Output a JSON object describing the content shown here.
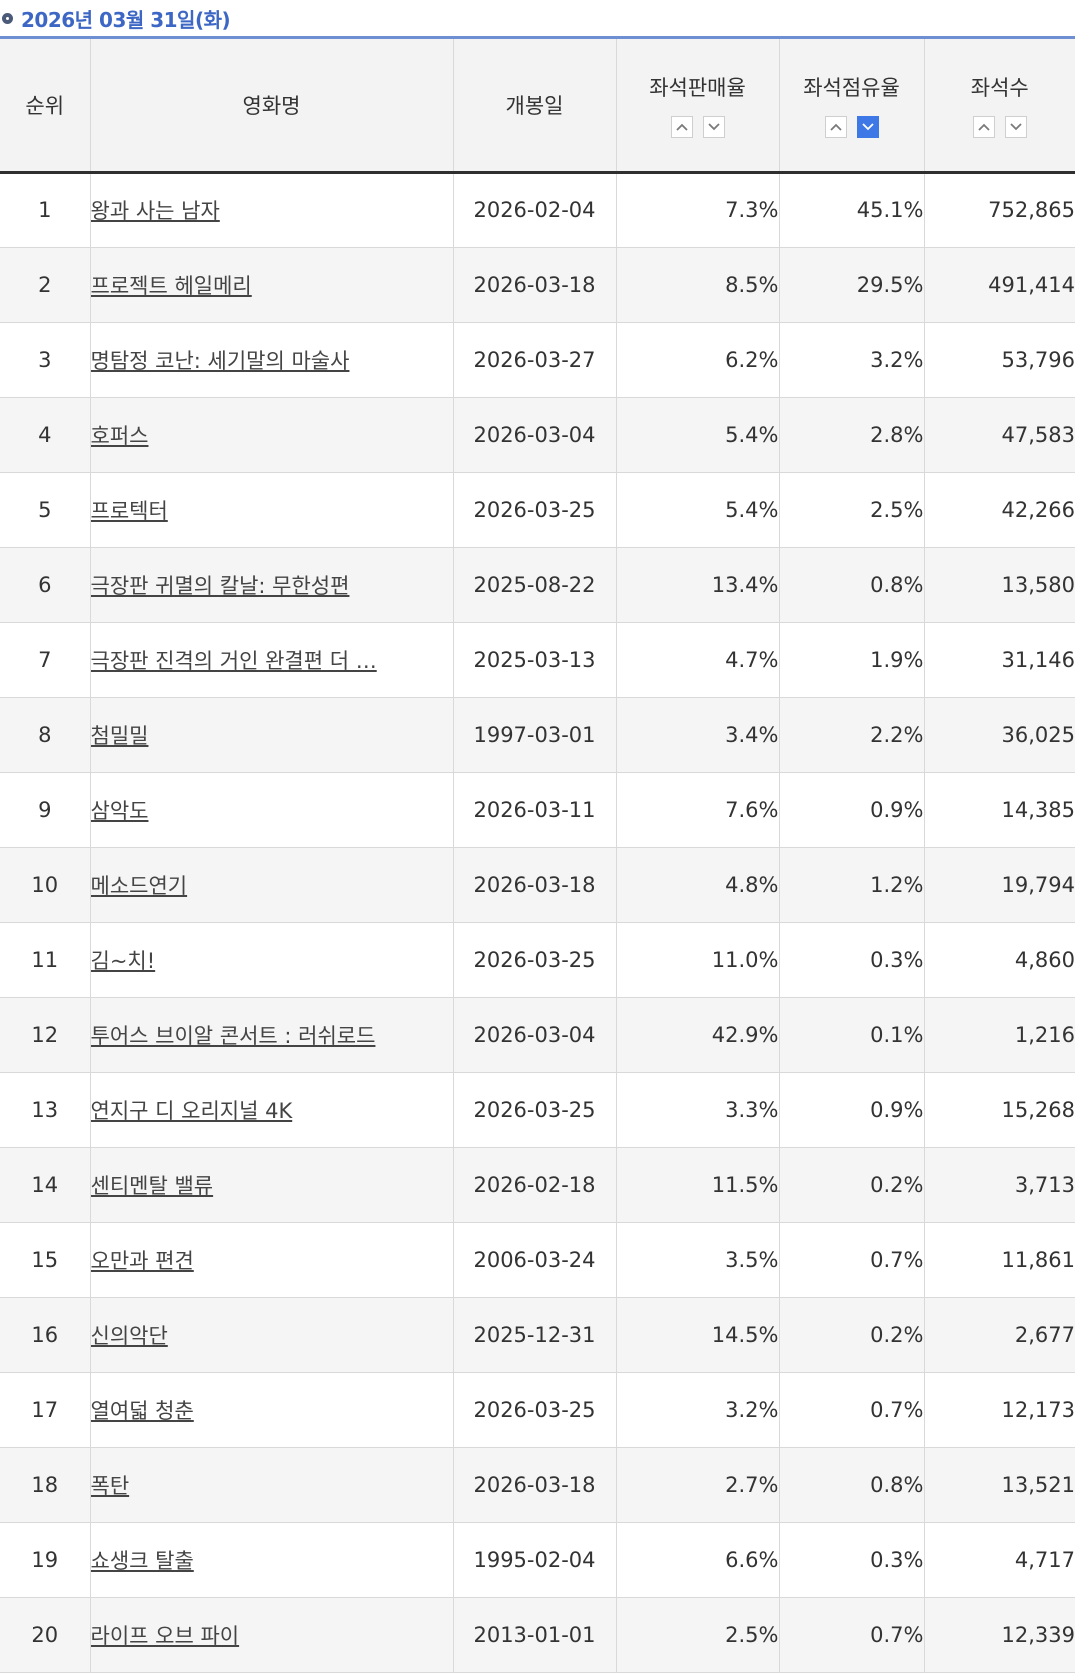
{
  "header": {
    "date": "2026년 03월 31일(화)"
  },
  "colors": {
    "accent": "#3d67c4",
    "rule": "#6e8fd2",
    "sort_active": "#3d78e6",
    "header_bg": "#f3f3f3",
    "row_alt_bg": "#f5f5f5"
  },
  "columns": {
    "rank": "순위",
    "title": "영화명",
    "release": "개봉일",
    "sales_rate": "좌석판매율",
    "share": "좌석점유율",
    "seats": "좌석수"
  },
  "sort": {
    "asc_icon": "chevron-up-icon",
    "desc_icon": "chevron-down-icon",
    "active": "share-desc"
  },
  "rows": [
    {
      "rank": "1",
      "title": "왕과 사는 남자",
      "release": "2026-02-04",
      "sales_rate": "7.3%",
      "share": "45.1%",
      "seats": "752,865"
    },
    {
      "rank": "2",
      "title": "프로젝트 헤일메리",
      "release": "2026-03-18",
      "sales_rate": "8.5%",
      "share": "29.5%",
      "seats": "491,414"
    },
    {
      "rank": "3",
      "title": "명탐정 코난: 세기말의 마술사",
      "release": "2026-03-27",
      "sales_rate": "6.2%",
      "share": "3.2%",
      "seats": "53,796"
    },
    {
      "rank": "4",
      "title": "호퍼스",
      "release": "2026-03-04",
      "sales_rate": "5.4%",
      "share": "2.8%",
      "seats": "47,583"
    },
    {
      "rank": "5",
      "title": "프로텍터",
      "release": "2026-03-25",
      "sales_rate": "5.4%",
      "share": "2.5%",
      "seats": "42,266"
    },
    {
      "rank": "6",
      "title": "극장판 귀멸의 칼날: 무한성편",
      "release": "2025-08-22",
      "sales_rate": "13.4%",
      "share": "0.8%",
      "seats": "13,580"
    },
    {
      "rank": "7",
      "title": "극장판 진격의 거인 완결편 더 …",
      "release": "2025-03-13",
      "sales_rate": "4.7%",
      "share": "1.9%",
      "seats": "31,146"
    },
    {
      "rank": "8",
      "title": "첨밀밀",
      "release": "1997-03-01",
      "sales_rate": "3.4%",
      "share": "2.2%",
      "seats": "36,025"
    },
    {
      "rank": "9",
      "title": "삼악도",
      "release": "2026-03-11",
      "sales_rate": "7.6%",
      "share": "0.9%",
      "seats": "14,385"
    },
    {
      "rank": "10",
      "title": "메소드연기",
      "release": "2026-03-18",
      "sales_rate": "4.8%",
      "share": "1.2%",
      "seats": "19,794"
    },
    {
      "rank": "11",
      "title": "김~치!",
      "release": "2026-03-25",
      "sales_rate": "11.0%",
      "share": "0.3%",
      "seats": "4,860"
    },
    {
      "rank": "12",
      "title": "투어스 브이알 콘서트 : 러쉬로드",
      "release": "2026-03-04",
      "sales_rate": "42.9%",
      "share": "0.1%",
      "seats": "1,216"
    },
    {
      "rank": "13",
      "title": "연지구 디 오리지널 4K",
      "release": "2026-03-25",
      "sales_rate": "3.3%",
      "share": "0.9%",
      "seats": "15,268"
    },
    {
      "rank": "14",
      "title": "센티멘탈 밸류",
      "release": "2026-02-18",
      "sales_rate": "11.5%",
      "share": "0.2%",
      "seats": "3,713"
    },
    {
      "rank": "15",
      "title": "오만과 편견",
      "release": "2006-03-24",
      "sales_rate": "3.5%",
      "share": "0.7%",
      "seats": "11,861"
    },
    {
      "rank": "16",
      "title": "신의악단",
      "release": "2025-12-31",
      "sales_rate": "14.5%",
      "share": "0.2%",
      "seats": "2,677"
    },
    {
      "rank": "17",
      "title": "열여덟 청춘",
      "release": "2026-03-25",
      "sales_rate": "3.2%",
      "share": "0.7%",
      "seats": "12,173"
    },
    {
      "rank": "18",
      "title": "폭탄",
      "release": "2026-03-18",
      "sales_rate": "2.7%",
      "share": "0.8%",
      "seats": "13,521"
    },
    {
      "rank": "19",
      "title": "쇼생크 탈출",
      "release": "1995-02-04",
      "sales_rate": "6.6%",
      "share": "0.3%",
      "seats": "4,717"
    },
    {
      "rank": "20",
      "title": "라이프 오브 파이",
      "release": "2013-01-01",
      "sales_rate": "2.5%",
      "share": "0.7%",
      "seats": "12,339"
    }
  ]
}
